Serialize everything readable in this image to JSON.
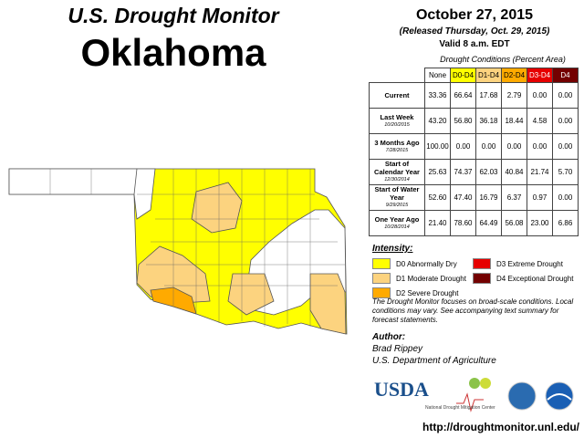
{
  "header": {
    "title": "U.S. Drought Monitor",
    "state": "Oklahoma",
    "date": "October 27, 2015",
    "released": "(Released Thursday, Oct. 29, 2015)",
    "valid": "Valid 8 a.m. EDT"
  },
  "table": {
    "caption": "Drought Conditions (Percent Area)",
    "columns": [
      "None",
      "D0-D4",
      "D1-D4",
      "D2-D4",
      "D3-D4",
      "D4"
    ],
    "column_colors": [
      "#ffffff",
      "#ffff00",
      "#fcd37f",
      "#ffaa00",
      "#e60000",
      "#730000"
    ],
    "rows": [
      {
        "label": "Current",
        "date": null,
        "values": [
          "33.36",
          "66.64",
          "17.68",
          "2.79",
          "0.00",
          "0.00"
        ]
      },
      {
        "label": "Last Week",
        "date": "10/20/2015",
        "values": [
          "43.20",
          "56.80",
          "36.18",
          "18.44",
          "4.58",
          "0.00"
        ]
      },
      {
        "label": "3 Months Ago",
        "date": "7/28/2015",
        "values": [
          "100.00",
          "0.00",
          "0.00",
          "0.00",
          "0.00",
          "0.00"
        ]
      },
      {
        "label": "Start of Calendar Year",
        "date": "12/30/2014",
        "values": [
          "25.63",
          "74.37",
          "62.03",
          "40.84",
          "21.74",
          "5.70"
        ]
      },
      {
        "label": "Start of Water Year",
        "date": "9/29/2015",
        "values": [
          "52.60",
          "47.40",
          "16.79",
          "6.37",
          "0.97",
          "0.00"
        ]
      },
      {
        "label": "One Year Ago",
        "date": "10/28/2014",
        "values": [
          "21.40",
          "78.60",
          "64.49",
          "56.08",
          "23.00",
          "6.86"
        ]
      }
    ]
  },
  "legend": {
    "title": "Intensity:",
    "items": [
      {
        "label": "D0 Abnormally Dry",
        "color": "#ffff00"
      },
      {
        "label": "D1 Moderate Drought",
        "color": "#fcd37f"
      },
      {
        "label": "D2 Severe Drought",
        "color": "#ffaa00"
      },
      {
        "label": "D3 Extreme Drought",
        "color": "#e60000"
      },
      {
        "label": "D4 Exceptional Drought",
        "color": "#730000"
      }
    ]
  },
  "note": "The Drought Monitor focuses on broad-scale conditions. Local conditions may vary. See accompanying text summary for forecast statements.",
  "author": {
    "heading": "Author:",
    "name": "Brad Rippey",
    "organization": "U.S. Department of Agriculture"
  },
  "logos": {
    "usda": "USDA",
    "ndmc": "National Drought Mitigation Center"
  },
  "url": "http://droughtmonitor.unl.edu/"
}
